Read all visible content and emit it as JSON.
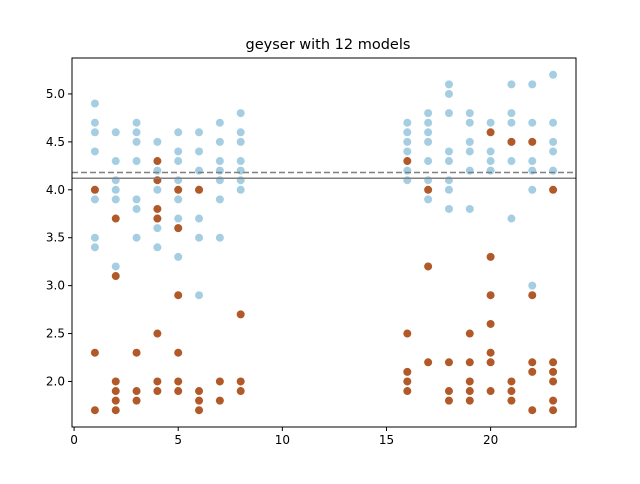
{
  "chart_data": {
    "type": "scatter",
    "title": "geyser with 12 models",
    "xlabel": "",
    "ylabel": "",
    "xlim": [
      -0.1,
      24.1
    ],
    "ylim": [
      1.525,
      5.375
    ],
    "x_ticks": [
      0,
      5,
      10,
      15,
      20
    ],
    "y_ticks": [
      2.0,
      2.5,
      3.0,
      3.5,
      4.0,
      4.5,
      5.0
    ],
    "x_tick_labels": [
      "0",
      "5",
      "10",
      "15",
      "20"
    ],
    "y_tick_labels": [
      "2.0",
      "2.5",
      "3.0",
      "3.5",
      "4.0",
      "4.5",
      "5.0"
    ],
    "grid": false,
    "colors": {
      "blue": "#a6cee3",
      "brown": "#b15928",
      "hline_solid": "#808080",
      "hline_dashed": "#808080"
    },
    "hlines": [
      {
        "y": 4.12,
        "style": "solid"
      },
      {
        "y": 4.18,
        "style": "dashed"
      }
    ],
    "series": [
      {
        "color": "blue",
        "points": [
          [
            1,
            4.9
          ],
          [
            1,
            4.7
          ],
          [
            1,
            4.6
          ],
          [
            1,
            4.4
          ],
          [
            1,
            4.0
          ],
          [
            1,
            3.9
          ],
          [
            1,
            3.5
          ],
          [
            1,
            3.4
          ],
          [
            2,
            4.6
          ],
          [
            2,
            4.3
          ],
          [
            2,
            4.1
          ],
          [
            2,
            4.0
          ],
          [
            2,
            3.9
          ],
          [
            2,
            3.2
          ],
          [
            3,
            4.7
          ],
          [
            3,
            4.6
          ],
          [
            3,
            4.5
          ],
          [
            3,
            4.3
          ],
          [
            3,
            3.9
          ],
          [
            3,
            3.8
          ],
          [
            3,
            3.5
          ],
          [
            4,
            4.5
          ],
          [
            4,
            4.2
          ],
          [
            4,
            4.0
          ],
          [
            4,
            3.7
          ],
          [
            4,
            3.6
          ],
          [
            4,
            3.4
          ],
          [
            5,
            4.6
          ],
          [
            5,
            4.4
          ],
          [
            5,
            4.3
          ],
          [
            5,
            4.1
          ],
          [
            5,
            3.9
          ],
          [
            5,
            3.7
          ],
          [
            5,
            3.6
          ],
          [
            5,
            3.3
          ],
          [
            6,
            4.6
          ],
          [
            6,
            4.4
          ],
          [
            6,
            4.2
          ],
          [
            6,
            4.0
          ],
          [
            6,
            3.7
          ],
          [
            6,
            3.5
          ],
          [
            6,
            2.9
          ],
          [
            7,
            4.7
          ],
          [
            7,
            4.5
          ],
          [
            7,
            4.3
          ],
          [
            7,
            4.2
          ],
          [
            7,
            4.1
          ],
          [
            7,
            3.9
          ],
          [
            7,
            3.5
          ],
          [
            8,
            4.8
          ],
          [
            8,
            4.6
          ],
          [
            8,
            4.5
          ],
          [
            8,
            4.3
          ],
          [
            8,
            4.2
          ],
          [
            8,
            4.1
          ],
          [
            8,
            4.0
          ],
          [
            16,
            4.7
          ],
          [
            16,
            4.6
          ],
          [
            16,
            4.5
          ],
          [
            16,
            4.4
          ],
          [
            16,
            4.2
          ],
          [
            16,
            4.1
          ],
          [
            17,
            4.8
          ],
          [
            17,
            4.7
          ],
          [
            17,
            4.6
          ],
          [
            17,
            4.5
          ],
          [
            17,
            4.3
          ],
          [
            17,
            4.1
          ],
          [
            17,
            3.9
          ],
          [
            18,
            5.1
          ],
          [
            18,
            5.0
          ],
          [
            18,
            4.8
          ],
          [
            18,
            4.4
          ],
          [
            18,
            4.3
          ],
          [
            18,
            4.1
          ],
          [
            18,
            4.0
          ],
          [
            18,
            3.8
          ],
          [
            19,
            4.8
          ],
          [
            19,
            4.7
          ],
          [
            19,
            4.5
          ],
          [
            19,
            4.4
          ],
          [
            19,
            4.2
          ],
          [
            19,
            3.8
          ],
          [
            20,
            4.7
          ],
          [
            20,
            4.4
          ],
          [
            20,
            4.3
          ],
          [
            20,
            4.2
          ],
          [
            21,
            5.1
          ],
          [
            21,
            4.8
          ],
          [
            21,
            4.7
          ],
          [
            21,
            4.5
          ],
          [
            21,
            4.3
          ],
          [
            21,
            3.7
          ],
          [
            22,
            5.1
          ],
          [
            22,
            4.7
          ],
          [
            22,
            4.3
          ],
          [
            22,
            4.2
          ],
          [
            22,
            4.0
          ],
          [
            22,
            3.0
          ],
          [
            23,
            5.2
          ],
          [
            23,
            4.7
          ],
          [
            23,
            4.5
          ],
          [
            23,
            4.4
          ],
          [
            23,
            4.2
          ]
        ]
      },
      {
        "color": "brown",
        "points": [
          [
            1,
            4.0
          ],
          [
            1,
            2.3
          ],
          [
            1,
            1.7
          ],
          [
            2,
            3.7
          ],
          [
            2,
            3.1
          ],
          [
            2,
            2.0
          ],
          [
            2,
            1.9
          ],
          [
            2,
            1.8
          ],
          [
            2,
            1.7
          ],
          [
            3,
            2.3
          ],
          [
            3,
            1.9
          ],
          [
            3,
            1.8
          ],
          [
            4,
            4.3
          ],
          [
            4,
            4.1
          ],
          [
            4,
            3.8
          ],
          [
            4,
            3.7
          ],
          [
            4,
            2.5
          ],
          [
            4,
            2.0
          ],
          [
            4,
            1.9
          ],
          [
            5,
            4.0
          ],
          [
            5,
            3.6
          ],
          [
            5,
            2.9
          ],
          [
            5,
            2.3
          ],
          [
            5,
            2.0
          ],
          [
            5,
            1.9
          ],
          [
            6,
            4.0
          ],
          [
            6,
            1.9
          ],
          [
            6,
            1.8
          ],
          [
            6,
            1.7
          ],
          [
            7,
            2.0
          ],
          [
            7,
            1.8
          ],
          [
            8,
            2.7
          ],
          [
            8,
            2.0
          ],
          [
            8,
            1.9
          ],
          [
            16,
            4.3
          ],
          [
            16,
            2.5
          ],
          [
            16,
            2.1
          ],
          [
            16,
            2.0
          ],
          [
            16,
            1.9
          ],
          [
            17,
            4.0
          ],
          [
            17,
            3.2
          ],
          [
            17,
            2.2
          ],
          [
            18,
            2.2
          ],
          [
            18,
            1.9
          ],
          [
            18,
            1.8
          ],
          [
            19,
            2.5
          ],
          [
            19,
            2.2
          ],
          [
            19,
            2.0
          ],
          [
            19,
            1.9
          ],
          [
            19,
            1.8
          ],
          [
            20,
            4.6
          ],
          [
            20,
            3.3
          ],
          [
            20,
            2.9
          ],
          [
            20,
            2.6
          ],
          [
            20,
            2.3
          ],
          [
            20,
            2.2
          ],
          [
            20,
            1.9
          ],
          [
            21,
            4.5
          ],
          [
            21,
            2.0
          ],
          [
            21,
            1.9
          ],
          [
            21,
            1.8
          ],
          [
            22,
            4.5
          ],
          [
            22,
            2.9
          ],
          [
            22,
            2.2
          ],
          [
            22,
            2.1
          ],
          [
            22,
            1.7
          ],
          [
            23,
            4.0
          ],
          [
            23,
            2.2
          ],
          [
            23,
            2.1
          ],
          [
            23,
            2.0
          ],
          [
            23,
            1.8
          ],
          [
            23,
            1.7
          ]
        ]
      }
    ]
  }
}
